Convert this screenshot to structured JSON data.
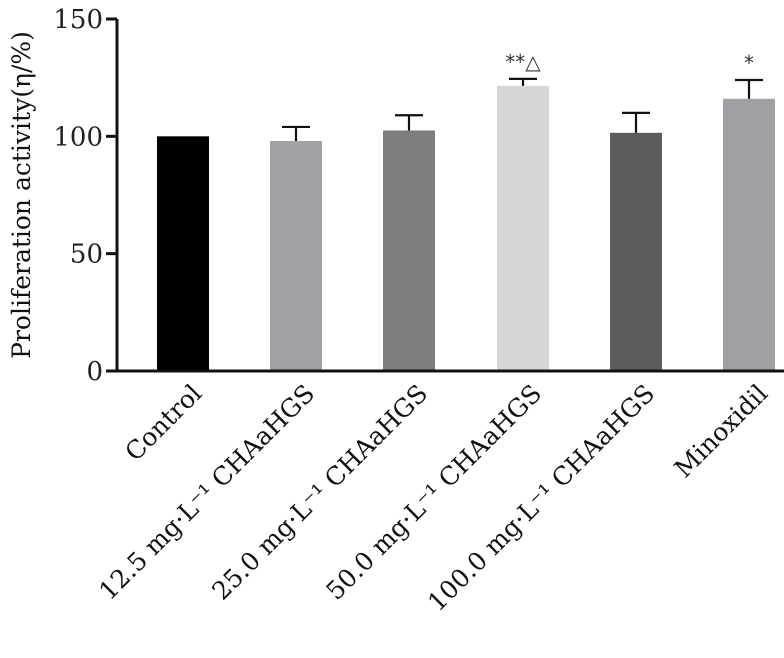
{
  "chart_data": {
    "type": "bar",
    "title": "",
    "xlabel": "",
    "ylabel": "Proliferation activity(η/%)",
    "ylim": [
      0,
      150
    ],
    "yticks": [
      0,
      50,
      100,
      150
    ],
    "categories": [
      "Control",
      "12.5 mg·L⁻¹ CHAaHGS",
      "25.0 mg·L⁻¹ CHAaHGS",
      "50.0 mg·L⁻¹ CHAaHGS",
      "100.0 mg·L⁻¹ CHAaHGS",
      "Minoxidil"
    ],
    "values": [
      100,
      98,
      102.5,
      121.5,
      101.5,
      116
    ],
    "errors": [
      0,
      6,
      6.5,
      3,
      8.5,
      8
    ],
    "significance": [
      "",
      "",
      "",
      "**△",
      "",
      "*"
    ],
    "colors": [
      "#000000",
      "#a2a2a6",
      "#7d7d7f",
      "#d6d6d6",
      "#5c5c5c",
      "#a0a0a4"
    ],
    "grid": false,
    "legend": "none"
  }
}
